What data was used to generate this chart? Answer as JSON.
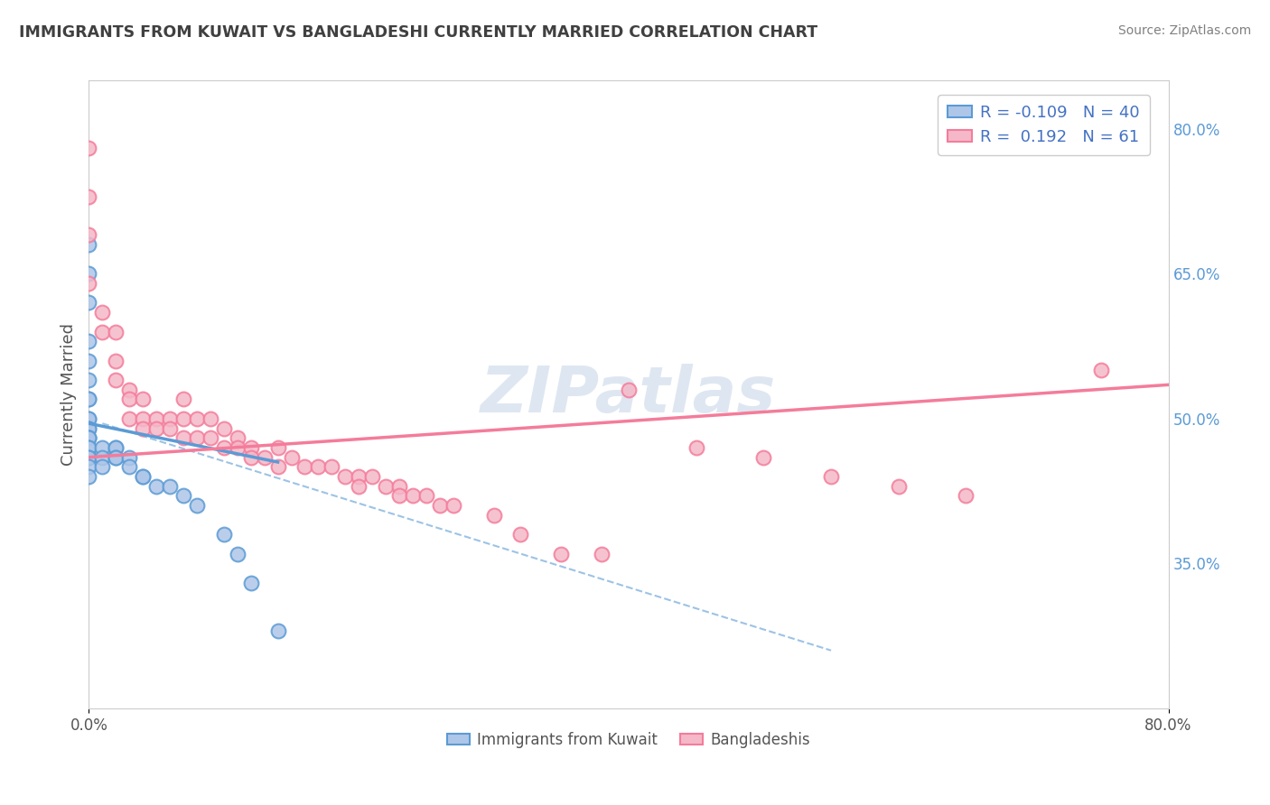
{
  "title": "IMMIGRANTS FROM KUWAIT VS BANGLADESHI CURRENTLY MARRIED CORRELATION CHART",
  "source_text": "Source: ZipAtlas.com",
  "ylabel": "Currently Married",
  "right_ytick_labels": [
    "35.0%",
    "50.0%",
    "65.0%",
    "80.0%"
  ],
  "right_ytick_values": [
    0.35,
    0.5,
    0.65,
    0.8
  ],
  "legend_entries": [
    {
      "label": "Immigrants from Kuwait",
      "R": -0.109,
      "N": 40,
      "color": "#aec6e8"
    },
    {
      "label": "Bangladeshis",
      "R": 0.192,
      "N": 61,
      "color": "#f4b8c8"
    }
  ],
  "watermark": "ZIPatlas",
  "blue_scatter_x": [
    0.0,
    0.0,
    0.0,
    0.0,
    0.0,
    0.0,
    0.0,
    0.0,
    0.0,
    0.0,
    0.0,
    0.0,
    0.0,
    0.0,
    0.0,
    0.0,
    0.0,
    0.0,
    0.0,
    0.0,
    0.0,
    0.01,
    0.01,
    0.01,
    0.02,
    0.02,
    0.02,
    0.02,
    0.03,
    0.03,
    0.04,
    0.04,
    0.05,
    0.06,
    0.07,
    0.08,
    0.1,
    0.11,
    0.12,
    0.14
  ],
  "blue_scatter_y": [
    0.68,
    0.65,
    0.62,
    0.58,
    0.56,
    0.54,
    0.52,
    0.52,
    0.5,
    0.5,
    0.49,
    0.49,
    0.48,
    0.48,
    0.48,
    0.47,
    0.47,
    0.46,
    0.46,
    0.45,
    0.44,
    0.47,
    0.46,
    0.45,
    0.47,
    0.47,
    0.46,
    0.46,
    0.46,
    0.45,
    0.44,
    0.44,
    0.43,
    0.43,
    0.42,
    0.41,
    0.38,
    0.36,
    0.33,
    0.28
  ],
  "pink_scatter_x": [
    0.0,
    0.0,
    0.0,
    0.0,
    0.01,
    0.01,
    0.02,
    0.02,
    0.02,
    0.03,
    0.03,
    0.03,
    0.04,
    0.04,
    0.04,
    0.05,
    0.05,
    0.06,
    0.06,
    0.07,
    0.07,
    0.07,
    0.08,
    0.08,
    0.09,
    0.09,
    0.1,
    0.1,
    0.11,
    0.11,
    0.12,
    0.12,
    0.13,
    0.14,
    0.14,
    0.15,
    0.16,
    0.17,
    0.18,
    0.19,
    0.2,
    0.2,
    0.21,
    0.22,
    0.23,
    0.23,
    0.24,
    0.25,
    0.26,
    0.27,
    0.3,
    0.32,
    0.35,
    0.38,
    0.4,
    0.45,
    0.5,
    0.55,
    0.6,
    0.65,
    0.75
  ],
  "pink_scatter_y": [
    0.78,
    0.73,
    0.69,
    0.64,
    0.61,
    0.59,
    0.59,
    0.56,
    0.54,
    0.53,
    0.52,
    0.5,
    0.52,
    0.5,
    0.49,
    0.5,
    0.49,
    0.5,
    0.49,
    0.52,
    0.5,
    0.48,
    0.5,
    0.48,
    0.5,
    0.48,
    0.49,
    0.47,
    0.48,
    0.47,
    0.47,
    0.46,
    0.46,
    0.47,
    0.45,
    0.46,
    0.45,
    0.45,
    0.45,
    0.44,
    0.44,
    0.43,
    0.44,
    0.43,
    0.43,
    0.42,
    0.42,
    0.42,
    0.41,
    0.41,
    0.4,
    0.38,
    0.36,
    0.36,
    0.53,
    0.47,
    0.46,
    0.44,
    0.43,
    0.42,
    0.55
  ],
  "blue_line_x": [
    0.0,
    0.14
  ],
  "blue_line_y": [
    0.495,
    0.455
  ],
  "pink_line_x": [
    0.0,
    0.8
  ],
  "pink_line_y": [
    0.46,
    0.535
  ],
  "dashed_line_x": [
    0.01,
    0.55
  ],
  "dashed_line_y": [
    0.495,
    0.26
  ],
  "xlim": [
    0.0,
    0.8
  ],
  "ylim": [
    0.2,
    0.85
  ],
  "background_color": "#ffffff",
  "plot_background": "#ffffff",
  "grid_color": "#cccccc",
  "title_color": "#404040",
  "source_color": "#808080",
  "blue_color": "#5b9bd5",
  "pink_color": "#f47c9a",
  "blue_fill": "#aec6e8",
  "pink_fill": "#f4b8c8",
  "watermark_color": "#c8d8e8",
  "dashed_line_color": "#aaaaaa",
  "legend_R_color": "#4472c4"
}
